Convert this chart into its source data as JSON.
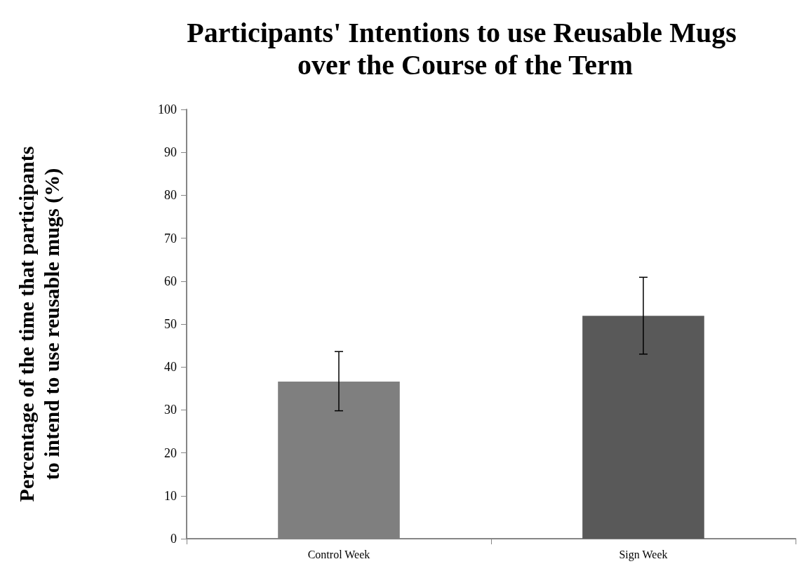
{
  "chart_data": {
    "type": "bar",
    "title": "Participants' Intentions to use Reusable Mugs over the Course of the Term",
    "ylabel": "Percentage of the time that participants to intend to use reusable mugs (%)",
    "categories": [
      "Control Week",
      "Sign Week"
    ],
    "values": [
      36.6,
      51.9
    ],
    "colors": [
      "#7f7f7f",
      "#595959"
    ],
    "errors": [
      [
        29.8,
        43.6
      ],
      [
        43.0,
        60.9
      ]
    ],
    "ylim": [
      0,
      100
    ],
    "yticks": [
      0,
      10,
      20,
      30,
      40,
      50,
      60,
      70,
      80,
      90,
      100
    ],
    "grid": false
  }
}
